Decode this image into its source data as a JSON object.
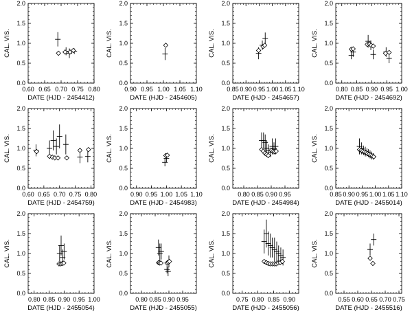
{
  "chart_data": [
    {
      "type": "scatter",
      "xlabel": "DATE (HJD - 2454412)",
      "ylabel": "CAL. VIS.",
      "xlim": [
        0.6,
        0.8
      ],
      "xticks": [
        0.6,
        0.65,
        0.7,
        0.75,
        0.8
      ],
      "xtick_labels": [
        "0.60",
        "0.65",
        "0.70",
        "0.75",
        "0.80"
      ],
      "ylim": [
        0,
        2
      ],
      "yticks": [
        0,
        0.5,
        1,
        1.5,
        2
      ],
      "ytick_labels": [
        "0.0",
        "0.5",
        "1.0",
        "1.5",
        "2.0"
      ],
      "series": [
        {
          "marker": "cross",
          "points": [
            [
              0.69,
              1.1,
              0.18
            ],
            [
              0.715,
              0.8,
              0.1
            ],
            [
              0.725,
              0.75,
              0.12
            ],
            [
              0.74,
              0.8,
              0.07
            ]
          ]
        },
        {
          "marker": "diamond",
          "points": [
            [
              0.692,
              0.75
            ],
            [
              0.712,
              0.78
            ],
            [
              0.727,
              0.78
            ],
            [
              0.737,
              0.82
            ]
          ]
        }
      ]
    },
    {
      "type": "scatter",
      "xlabel": "DATE (HJD - 2454605)",
      "ylabel": "CAL. VIS.",
      "xlim": [
        0.9,
        1.1
      ],
      "xticks": [
        0.9,
        0.95,
        1.0,
        1.05,
        1.1
      ],
      "xtick_labels": [
        "0.90",
        "0.95",
        "1.00",
        "1.05",
        "1.10"
      ],
      "ylim": [
        0,
        2
      ],
      "yticks": [
        0,
        0.5,
        1,
        1.5,
        2
      ],
      "ytick_labels": [
        "0.0",
        "0.5",
        "1.0",
        "1.5",
        "2.0"
      ],
      "series": [
        {
          "marker": "cross",
          "points": [
            [
              1.005,
              0.73,
              0.15
            ]
          ]
        },
        {
          "marker": "diamond",
          "points": [
            [
              1.007,
              0.95
            ]
          ]
        }
      ]
    },
    {
      "type": "scatter",
      "xlabel": "DATE (HJD - 2454657)",
      "ylabel": "CAL. VIS.",
      "xlim": [
        0.85,
        1.1
      ],
      "xticks": [
        0.85,
        0.9,
        0.95,
        1.0,
        1.05,
        1.1
      ],
      "xtick_labels": [
        "0.85",
        "0.90",
        "0.95",
        "1.00",
        "1.05",
        "1.10"
      ],
      "ylim": [
        0,
        2
      ],
      "yticks": [
        0,
        0.5,
        1,
        1.5,
        2
      ],
      "ytick_labels": [
        "0.0",
        "0.5",
        "1.0",
        "1.5",
        "2.0"
      ],
      "series": [
        {
          "marker": "cross",
          "points": [
            [
              0.948,
              0.75,
              0.15
            ],
            [
              0.962,
              0.95,
              0.12
            ],
            [
              0.973,
              1.12,
              0.15
            ]
          ]
        },
        {
          "marker": "diamond",
          "points": [
            [
              0.948,
              0.82
            ],
            [
              0.965,
              0.92
            ],
            [
              0.971,
              0.95
            ]
          ]
        }
      ]
    },
    {
      "type": "scatter",
      "xlabel": "DATE (HJD - 2454692)",
      "ylabel": "CAL. VIS.",
      "xlim": [
        0.78,
        1.0
      ],
      "xticks": [
        0.8,
        0.85,
        0.9,
        0.95,
        1.0
      ],
      "xtick_labels": [
        "0.80",
        "0.85",
        "0.90",
        "0.95",
        "1.00"
      ],
      "ylim": [
        0,
        2
      ],
      "yticks": [
        0,
        0.5,
        1,
        1.5,
        2
      ],
      "ytick_labels": [
        "0.0",
        "0.5",
        "1.0",
        "1.5",
        "2.0"
      ],
      "series": [
        {
          "marker": "cross",
          "points": [
            [
              0.832,
              0.7,
              0.1
            ],
            [
              0.838,
              0.78,
              0.12
            ],
            [
              0.888,
              1.05,
              0.16
            ],
            [
              0.897,
              0.95,
              0.12
            ],
            [
              0.905,
              0.72,
              0.12
            ],
            [
              0.948,
              0.78,
              0.12
            ],
            [
              0.958,
              0.62,
              0.12
            ]
          ]
        },
        {
          "marker": "diamond",
          "points": [
            [
              0.832,
              0.85
            ],
            [
              0.838,
              0.86
            ],
            [
              0.885,
              0.97
            ],
            [
              0.893,
              0.98
            ],
            [
              0.898,
              0.95
            ],
            [
              0.905,
              0.93
            ],
            [
              0.946,
              0.75
            ],
            [
              0.958,
              0.77
            ]
          ]
        }
      ]
    },
    {
      "type": "scatter",
      "xlabel": "DATE (HJD - 2454759)",
      "ylabel": "CAL. VIS.",
      "xlim": [
        0.6,
        0.81
      ],
      "xticks": [
        0.6,
        0.65,
        0.7,
        0.75,
        0.8
      ],
      "xtick_labels": [
        "0.60",
        "0.65",
        "0.70",
        "0.75",
        "0.80"
      ],
      "ylim": [
        0,
        2
      ],
      "yticks": [
        0,
        0.5,
        1,
        1.5,
        2
      ],
      "ytick_labels": [
        "0.0",
        "0.5",
        "1.0",
        "1.5",
        "2.0"
      ],
      "series": [
        {
          "marker": "cross",
          "points": [
            [
              0.625,
              0.95,
              0.15
            ],
            [
              0.668,
              1.0,
              0.2
            ],
            [
              0.68,
              1.2,
              0.25
            ],
            [
              0.69,
              1.05,
              0.2
            ],
            [
              0.7,
              1.3,
              0.3
            ],
            [
              0.72,
              1.1,
              0.25
            ],
            [
              0.765,
              0.78,
              0.15
            ],
            [
              0.79,
              0.8,
              0.15
            ]
          ]
        },
        {
          "marker": "diamond",
          "points": [
            [
              0.627,
              0.92
            ],
            [
              0.668,
              0.8
            ],
            [
              0.677,
              0.78
            ],
            [
              0.685,
              0.76
            ],
            [
              0.695,
              0.76
            ],
            [
              0.723,
              0.76
            ],
            [
              0.765,
              0.95
            ],
            [
              0.792,
              0.97
            ]
          ]
        }
      ]
    },
    {
      "type": "scatter",
      "xlabel": "DATE (HJD - 2454983)",
      "ylabel": "CAL. VIS.",
      "xlim": [
        0.88,
        1.1
      ],
      "xticks": [
        0.9,
        0.95,
        1.0,
        1.05,
        1.1
      ],
      "xtick_labels": [
        "0.90",
        "0.95",
        "1.00",
        "1.05",
        "1.10"
      ],
      "ylim": [
        0,
        2
      ],
      "yticks": [
        0,
        0.5,
        1,
        1.5,
        2
      ],
      "ytick_labels": [
        "0.0",
        "0.5",
        "1.0",
        "1.5",
        "2.0"
      ],
      "series": [
        {
          "marker": "cross",
          "points": [
            [
              0.995,
              0.65,
              0.1
            ],
            [
              1.0,
              0.75,
              0.1
            ]
          ]
        },
        {
          "marker": "diamond",
          "points": [
            [
              0.998,
              0.82
            ],
            [
              1.003,
              0.83
            ]
          ]
        }
      ]
    },
    {
      "type": "scatter",
      "xlabel": "DATE (HJD - 2454984)",
      "ylabel": "CAL. VIS.",
      "xlim": [
        0.76,
        1.0
      ],
      "xticks": [
        0.8,
        0.85,
        0.9,
        0.95
      ],
      "xtick_labels": [
        "0.80",
        "0.85",
        "0.90",
        "0.95"
      ],
      "ylim": [
        0,
        2
      ],
      "yticks": [
        0,
        0.5,
        1,
        1.5,
        2
      ],
      "ytick_labels": [
        "0.0",
        "0.5",
        "1.0",
        "1.5",
        "2.0"
      ],
      "series": [
        {
          "marker": "cross",
          "points": [
            [
              0.865,
              1.2,
              0.2
            ],
            [
              0.872,
              1.2,
              0.2
            ],
            [
              0.878,
              1.15,
              0.2
            ],
            [
              0.884,
              1.0,
              0.2
            ],
            [
              0.89,
              0.95,
              0.15
            ],
            [
              0.898,
              0.9,
              0.12
            ],
            [
              0.904,
              1.05,
              0.2
            ],
            [
              0.91,
              1.0,
              0.15
            ],
            [
              0.916,
              1.05,
              0.2
            ]
          ]
        },
        {
          "marker": "diamond",
          "points": [
            [
              0.865,
              0.97
            ],
            [
              0.871,
              0.93
            ],
            [
              0.877,
              0.88
            ],
            [
              0.883,
              0.85
            ],
            [
              0.889,
              0.82
            ],
            [
              0.9,
              0.95
            ],
            [
              0.906,
              0.93
            ],
            [
              0.912,
              0.92
            ],
            [
              0.918,
              0.93
            ]
          ]
        }
      ]
    },
    {
      "type": "scatter",
      "xlabel": "DATE (HJD - 2455014)",
      "ylabel": "CAL. VIS.",
      "xlim": [
        0.85,
        1.1
      ],
      "xticks": [
        0.85,
        0.9,
        0.95,
        1.0,
        1.05,
        1.1
      ],
      "xtick_labels": [
        "0.85",
        "0.90",
        "0.95",
        "1.00",
        "1.05",
        "1.10"
      ],
      "ylim": [
        0,
        2
      ],
      "yticks": [
        0,
        0.5,
        1,
        1.5,
        2
      ],
      "ytick_labels": [
        "0.0",
        "0.5",
        "1.0",
        "1.5",
        "2.0"
      ],
      "series": [
        {
          "marker": "cross",
          "points": [
            [
              0.94,
              1.05,
              0.2
            ],
            [
              0.948,
              1.0,
              0.15
            ],
            [
              0.955,
              0.95,
              0.12
            ],
            [
              0.962,
              0.92,
              0.12
            ],
            [
              0.968,
              0.9,
              0.1
            ],
            [
              0.974,
              0.88,
              0.1
            ],
            [
              0.98,
              0.85,
              0.1
            ],
            [
              0.986,
              0.82,
              0.1
            ],
            [
              0.992,
              0.8,
              0.08
            ]
          ]
        },
        {
          "marker": "diamond",
          "points": [
            [
              0.94,
              0.97
            ],
            [
              0.946,
              0.95
            ],
            [
              0.952,
              0.93
            ],
            [
              0.958,
              0.91
            ],
            [
              0.964,
              0.89
            ],
            [
              0.97,
              0.87
            ],
            [
              0.976,
              0.85
            ],
            [
              0.982,
              0.83
            ],
            [
              0.988,
              0.81
            ],
            [
              0.994,
              0.79
            ]
          ]
        }
      ]
    },
    {
      "type": "scatter",
      "xlabel": "DATE (HJD - 2455054)",
      "ylabel": "CAL. VIS.",
      "xlim": [
        0.78,
        1.0
      ],
      "xticks": [
        0.8,
        0.85,
        0.9,
        0.95,
        1.0
      ],
      "xtick_labels": [
        "0.80",
        "0.85",
        "0.90",
        "0.95",
        "1.00"
      ],
      "ylim": [
        0,
        2
      ],
      "yticks": [
        0,
        0.5,
        1,
        1.5,
        2
      ],
      "ytick_labels": [
        "0.0",
        "0.5",
        "1.0",
        "1.5",
        "2.0"
      ],
      "series": [
        {
          "marker": "cross",
          "points": [
            [
              0.885,
              1.0,
              0.2
            ],
            [
              0.89,
              1.2,
              0.25
            ],
            [
              0.895,
              0.9,
              0.2
            ],
            [
              0.9,
              1.05,
              0.2
            ]
          ]
        },
        {
          "marker": "diamond",
          "points": [
            [
              0.883,
              0.74
            ],
            [
              0.889,
              0.74
            ],
            [
              0.894,
              0.75
            ],
            [
              0.899,
              0.76
            ]
          ]
        }
      ]
    },
    {
      "type": "scatter",
      "xlabel": "DATE (HJD - 2455055)",
      "ylabel": "CAL. VIS.",
      "xlim": [
        0.76,
        1.0
      ],
      "xticks": [
        0.8,
        0.85,
        0.9,
        0.95
      ],
      "xtick_labels": [
        "0.80",
        "0.85",
        "0.90",
        "0.95"
      ],
      "ylim": [
        0,
        2
      ],
      "yticks": [
        0,
        0.5,
        1,
        1.5,
        2
      ],
      "ytick_labels": [
        "0.0",
        "0.5",
        "1.0",
        "1.5",
        "2.0"
      ],
      "series": [
        {
          "marker": "cross",
          "points": [
            [
              0.862,
              1.15,
              0.2
            ],
            [
              0.867,
              1.0,
              0.25
            ],
            [
              0.872,
              1.05,
              0.2
            ],
            [
              0.893,
              0.6,
              0.1
            ],
            [
              0.897,
              0.55,
              0.12
            ],
            [
              0.9,
              0.8,
              0.15
            ]
          ]
        },
        {
          "marker": "diamond",
          "points": [
            [
              0.862,
              0.77
            ],
            [
              0.866,
              0.76
            ],
            [
              0.871,
              0.76
            ],
            [
              0.893,
              0.76
            ],
            [
              0.897,
              0.78
            ],
            [
              0.902,
              0.8
            ]
          ]
        }
      ]
    },
    {
      "type": "scatter",
      "xlabel": "DATE (HJD - 2455056)",
      "ylabel": "CAL. VIS.",
      "xlim": [
        0.72,
        0.93
      ],
      "xticks": [
        0.75,
        0.8,
        0.85,
        0.9
      ],
      "xtick_labels": [
        "0.75",
        "0.80",
        "0.85",
        "0.90"
      ],
      "ylim": [
        0,
        2
      ],
      "yticks": [
        0,
        0.5,
        1,
        1.5,
        2
      ],
      "ytick_labels": [
        "0.0",
        "0.5",
        "1.0",
        "1.5",
        "2.0"
      ],
      "series": [
        {
          "marker": "cross",
          "points": [
            [
              0.82,
              1.3,
              0.3
            ],
            [
              0.827,
              1.5,
              0.35
            ],
            [
              0.833,
              1.25,
              0.3
            ],
            [
              0.84,
              1.2,
              0.3
            ],
            [
              0.846,
              1.15,
              0.25
            ],
            [
              0.853,
              1.1,
              0.3
            ],
            [
              0.86,
              1.05,
              0.25
            ],
            [
              0.866,
              1.0,
              0.2
            ],
            [
              0.873,
              0.95,
              0.2
            ],
            [
              0.88,
              0.9,
              0.2
            ]
          ]
        },
        {
          "marker": "diamond",
          "points": [
            [
              0.82,
              0.8
            ],
            [
              0.827,
              0.77
            ],
            [
              0.833,
              0.75
            ],
            [
              0.839,
              0.74
            ],
            [
              0.846,
              0.74
            ],
            [
              0.852,
              0.74
            ],
            [
              0.858,
              0.74
            ],
            [
              0.864,
              0.76
            ],
            [
              0.871,
              0.77
            ],
            [
              0.878,
              0.8
            ]
          ]
        }
      ]
    },
    {
      "type": "scatter",
      "xlabel": "DATE (HJD - 2455516)",
      "ylabel": "CAL. VIS.",
      "xlim": [
        0.52,
        0.76
      ],
      "xticks": [
        0.55,
        0.6,
        0.65,
        0.7,
        0.75
      ],
      "xtick_labels": [
        "0.55",
        "0.60",
        "0.65",
        "0.70",
        "0.75"
      ],
      "ylim": [
        0,
        2
      ],
      "yticks": [
        0,
        0.5,
        1,
        1.5,
        2
      ],
      "ytick_labels": [
        "0.0",
        "0.5",
        "1.0",
        "1.5",
        "2.0"
      ],
      "series": [
        {
          "marker": "cross",
          "points": [
            [
              0.645,
              1.1,
              0.15
            ],
            [
              0.658,
              1.35,
              0.15
            ]
          ]
        },
        {
          "marker": "diamond",
          "points": [
            [
              0.645,
              0.88
            ],
            [
              0.655,
              0.75
            ]
          ]
        }
      ]
    }
  ]
}
